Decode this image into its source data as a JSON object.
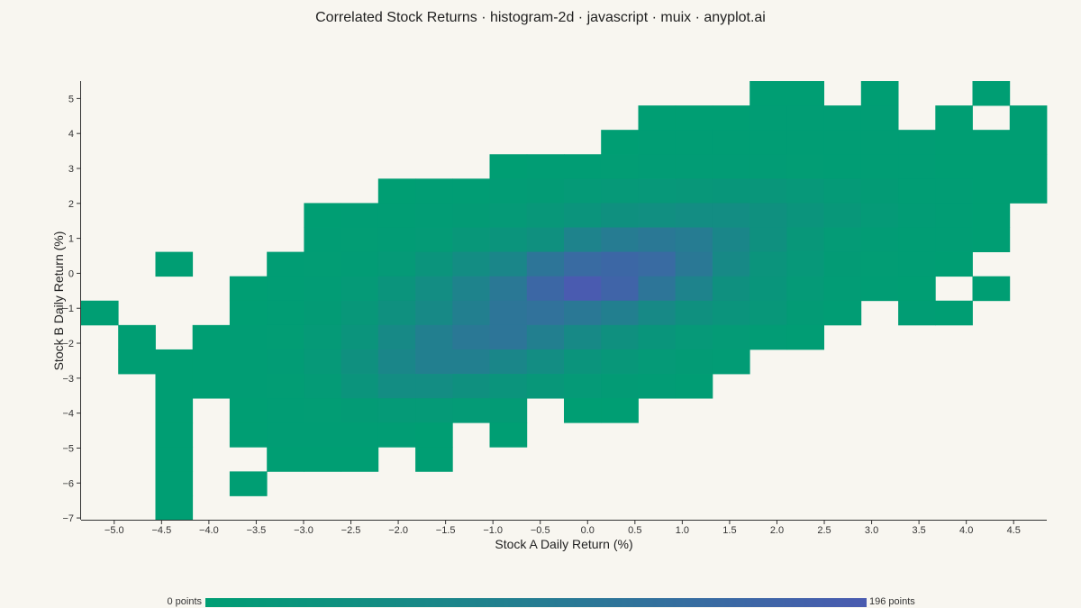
{
  "chart_data": {
    "type": "heatmap",
    "title": "Correlated Stock Returns · histogram-2d · javascript · muix · anyplot.ai",
    "xlabel": "Stock A Daily Return (%)",
    "ylabel": "Stock B Daily Return (%)",
    "xlim": [
      -5.35,
      4.85
    ],
    "ylim": [
      -7.05,
      5.5
    ],
    "x_ticks": [
      -5.0,
      -4.5,
      -4.0,
      -3.5,
      -3.0,
      -2.5,
      -2.0,
      -1.5,
      -1.0,
      -0.5,
      0.0,
      0.5,
      1.0,
      1.5,
      2.0,
      2.5,
      3.0,
      3.5,
      4.0,
      4.5
    ],
    "x_tick_labels": [
      "−5.0",
      "−4.5",
      "−4.0",
      "−3.5",
      "−3.0",
      "−2.5",
      "−2.0",
      "−1.5",
      "−1.0",
      "−0.5",
      "0.0",
      "0.5",
      "1.0",
      "1.5",
      "2.0",
      "2.5",
      "3.0",
      "3.5",
      "4.0",
      "4.5"
    ],
    "y_ticks": [
      5,
      4,
      3,
      2,
      1,
      0,
      -1,
      -2,
      -3,
      -4,
      -5,
      -6,
      -7
    ],
    "y_tick_labels": [
      "5",
      "4",
      "3",
      "2",
      "1",
      "0",
      "−1",
      "−2",
      "−3",
      "−4",
      "−5",
      "−6",
      "−7"
    ],
    "bins": {
      "x_edges": [
        -5.35,
        -4.958,
        -4.565,
        -4.173,
        -3.781,
        -3.388,
        -2.996,
        -2.604,
        -2.212,
        -1.819,
        -1.427,
        -1.035,
        -0.642,
        -0.25,
        0.142,
        0.535,
        0.927,
        1.319,
        1.712,
        2.104,
        2.496,
        2.888,
        3.281,
        3.673,
        4.065,
        4.458,
        4.85
      ],
      "y_top": 5.5,
      "y_bin_height": 0.698,
      "n_y_bins": 18
    },
    "counts": [
      [
        0,
        0,
        0,
        0,
        0,
        0,
        0,
        0,
        0,
        0,
        0,
        0,
        0,
        0,
        0,
        0,
        0,
        0,
        1,
        1,
        0,
        1,
        0,
        0,
        1,
        0
      ],
      [
        0,
        0,
        0,
        0,
        0,
        0,
        0,
        0,
        0,
        0,
        0,
        0,
        0,
        0,
        0,
        1,
        1,
        1,
        2,
        2,
        2,
        2,
        0,
        1,
        0,
        1
      ],
      [
        0,
        0,
        0,
        0,
        0,
        0,
        0,
        0,
        0,
        0,
        0,
        0,
        0,
        0,
        1,
        2,
        2,
        3,
        3,
        3,
        3,
        2,
        2,
        1,
        1,
        1
      ],
      [
        0,
        0,
        0,
        0,
        0,
        0,
        0,
        0,
        0,
        0,
        0,
        1,
        2,
        3,
        4,
        5,
        6,
        6,
        5,
        4,
        3,
        2,
        2,
        1,
        1,
        1
      ],
      [
        0,
        0,
        0,
        0,
        0,
        0,
        0,
        0,
        1,
        2,
        3,
        5,
        8,
        12,
        15,
        18,
        20,
        22,
        24,
        18,
        12,
        8,
        3,
        2,
        1,
        1
      ],
      [
        0,
        0,
        0,
        0,
        0,
        0,
        1,
        2,
        3,
        5,
        8,
        12,
        20,
        30,
        40,
        45,
        50,
        50,
        40,
        30,
        20,
        12,
        5,
        2,
        1,
        0
      ],
      [
        0,
        0,
        0,
        0,
        0,
        0,
        2,
        4,
        6,
        10,
        20,
        30,
        40,
        80,
        100,
        110,
        100,
        70,
        40,
        20,
        10,
        5,
        2,
        2,
        1,
        0
      ],
      [
        0,
        0,
        1,
        0,
        0,
        2,
        4,
        6,
        12,
        30,
        50,
        70,
        120,
        150,
        160,
        150,
        110,
        60,
        30,
        18,
        8,
        4,
        2,
        1,
        0,
        0
      ],
      [
        0,
        0,
        0,
        0,
        1,
        2,
        5,
        12,
        30,
        50,
        80,
        110,
        160,
        196,
        170,
        120,
        80,
        40,
        25,
        12,
        6,
        3,
        1,
        0,
        1,
        0
      ],
      [
        1,
        0,
        0,
        0,
        1,
        3,
        8,
        20,
        40,
        60,
        90,
        120,
        130,
        110,
        90,
        60,
        40,
        30,
        20,
        8,
        2,
        0,
        2,
        1,
        0,
        0
      ],
      [
        0,
        1,
        0,
        1,
        2,
        4,
        12,
        30,
        60,
        90,
        110,
        120,
        90,
        60,
        40,
        25,
        15,
        10,
        5,
        2,
        0,
        0,
        0,
        0,
        0,
        0
      ],
      [
        0,
        1,
        1,
        1,
        2,
        5,
        15,
        40,
        70,
        90,
        90,
        70,
        50,
        30,
        20,
        12,
        8,
        5,
        0,
        0,
        0,
        0,
        0,
        0,
        0,
        0
      ],
      [
        0,
        0,
        1,
        1,
        2,
        4,
        10,
        30,
        50,
        50,
        40,
        30,
        20,
        12,
        8,
        5,
        3,
        0,
        0,
        0,
        0,
        0,
        0,
        0,
        0,
        0
      ],
      [
        0,
        0,
        1,
        0,
        1,
        2,
        4,
        8,
        12,
        12,
        10,
        8,
        0,
        1,
        1,
        0,
        0,
        0,
        0,
        0,
        0,
        0,
        0,
        0,
        0,
        0
      ],
      [
        0,
        0,
        1,
        0,
        1,
        2,
        3,
        3,
        2,
        1,
        0,
        1,
        0,
        0,
        0,
        0,
        0,
        0,
        0,
        0,
        0,
        0,
        0,
        0,
        0,
        0
      ],
      [
        0,
        0,
        1,
        0,
        0,
        1,
        1,
        1,
        0,
        1,
        0,
        0,
        0,
        0,
        0,
        0,
        0,
        0,
        0,
        0,
        0,
        0,
        0,
        0,
        0,
        0
      ],
      [
        0,
        0,
        1,
        0,
        1,
        0,
        0,
        0,
        0,
        0,
        0,
        0,
        0,
        0,
        0,
        0,
        0,
        0,
        0,
        0,
        0,
        0,
        0,
        0,
        0,
        0
      ],
      [
        0,
        0,
        1,
        0,
        0,
        0,
        0,
        0,
        0,
        0,
        0,
        0,
        0,
        0,
        0,
        0,
        0,
        0,
        0,
        0,
        0,
        0,
        0,
        0,
        0,
        0
      ]
    ],
    "color_scale": {
      "min_color": "#009E73",
      "max_color": "#4A5BB0",
      "min": 0,
      "max": 196
    },
    "colorbar": {
      "min_label": "0 points",
      "max_label": "196 points",
      "placement": "bottom"
    },
    "grid": false
  },
  "colors": {
    "background": "#F8F6F0",
    "axis": "#333333"
  }
}
